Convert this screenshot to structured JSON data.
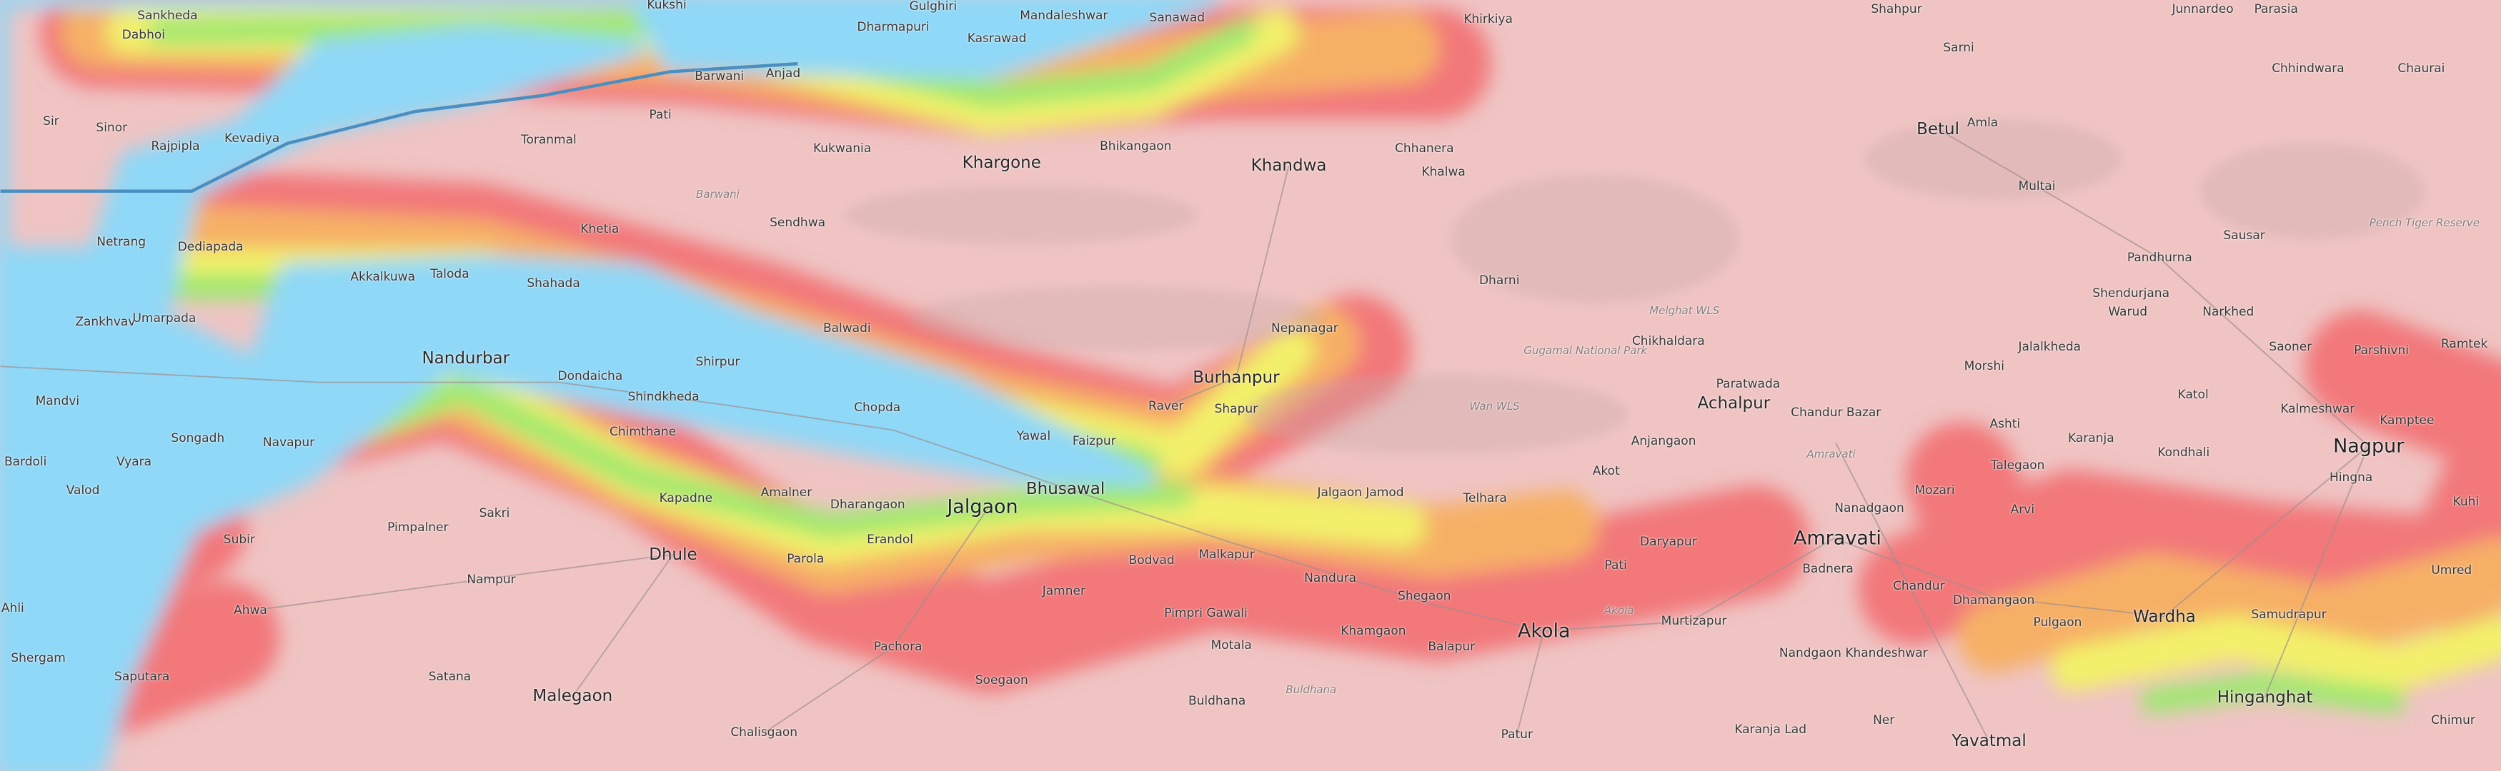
{
  "map": {
    "layer": "elevation-overlay",
    "colors": {
      "base": "#efc4c3",
      "low": "#8fd8f7",
      "green": "#9fe870",
      "yellow": "#f2f06a",
      "orange": "#f6b066",
      "red": "#f2787a"
    },
    "places": [
      "Sankheda",
      "Dabhoi",
      "Kukshi",
      "Gulghiri",
      "Dharmapuri",
      "Mandaleshwar",
      "Kasrawad",
      "Sanawad",
      "Khirkiya",
      "Shahpur",
      "Junnardeo",
      "Parasia",
      "Barwani",
      "Anjad",
      "Sarni",
      "Chhindwara",
      "Chaurai",
      "Sinor",
      "Kevadiya",
      "Pati",
      "Toranmal",
      "Khargone",
      "Bhikangaon",
      "Kukwania",
      "Khandwa",
      "Chhanera",
      "Betul",
      "Amla",
      "Rajpipla",
      "Khalwa",
      "Barwani",
      "Sendhwa",
      "Multai",
      "Netrang",
      "Dediapada",
      "Khetia",
      "Pandhurna",
      "Sausar",
      "Akkalkuwa",
      "Taloda",
      "Shahada",
      "Dharni",
      "Melghat WLS",
      "Shendurjana",
      "Warud",
      "Narkhed",
      "Zankhvav",
      "Umarpada",
      "Balwadi",
      "Nepanagar",
      "Chikhaldara",
      "Jalalkheda",
      "Saoner",
      "Parshivni",
      "Ramtek",
      "Nandurbar",
      "Dondaicha",
      "Shirpur",
      "Burhanpur",
      "Paratwada",
      "Morshi",
      "Mandvi",
      "Shindkheda",
      "Chopda",
      "Raver",
      "Shapur",
      "Achalpur",
      "Chandur Bazar",
      "Katol",
      "Kalmeshwar",
      "Songadh",
      "Navapur",
      "Chimthane",
      "Yawal",
      "Faizpur",
      "Anjangaon",
      "Ashti",
      "Karanja",
      "Kondhali",
      "Nagpur",
      "Kamptee",
      "Bardoli",
      "Vyara",
      "Valod",
      "Akot",
      "Talegaon",
      "Hingna",
      "Sakri",
      "Amalner",
      "Dharangaon",
      "Bhusawal",
      "Jalgaon Jamod",
      "Telhara",
      "Mozari",
      "Kuhi",
      "Pimpalner",
      "Kapadne",
      "Jalgaon",
      "Subir",
      "Erandol",
      "Arvi",
      "Nanadgaon",
      "Dhule",
      "Parola",
      "Bodvad",
      "Malkapur",
      "Pati",
      "Daryapur",
      "Amravati",
      "Badnera",
      "Umred",
      "Nandura",
      "Ahwa",
      "Nampur",
      "Jamner",
      "Pimpri Gawali",
      "Shegaon",
      "Chandur",
      "Wardha",
      "Akola",
      "Murtizapur",
      "Dhamangaon",
      "Pulgaon",
      "Samudrapur",
      "Khamgaon",
      "Balapur",
      "Nandgaon Khandeshwar",
      "Pachora",
      "Motala",
      "Saputara",
      "Satana",
      "Soegaon",
      "Malegaon",
      "Hinganghat",
      "Buldhana",
      "Chalisgaon",
      "Patur",
      "Karanja Lad",
      "Ner",
      "Yavatmal",
      "Chimur",
      "Sir",
      "Ahli",
      "Shergam",
      "Gugamal National Park",
      "Wan WLS",
      "Pench Tiger Reserve",
      "Amravati",
      "Akola",
      "Buldhana"
    ]
  }
}
